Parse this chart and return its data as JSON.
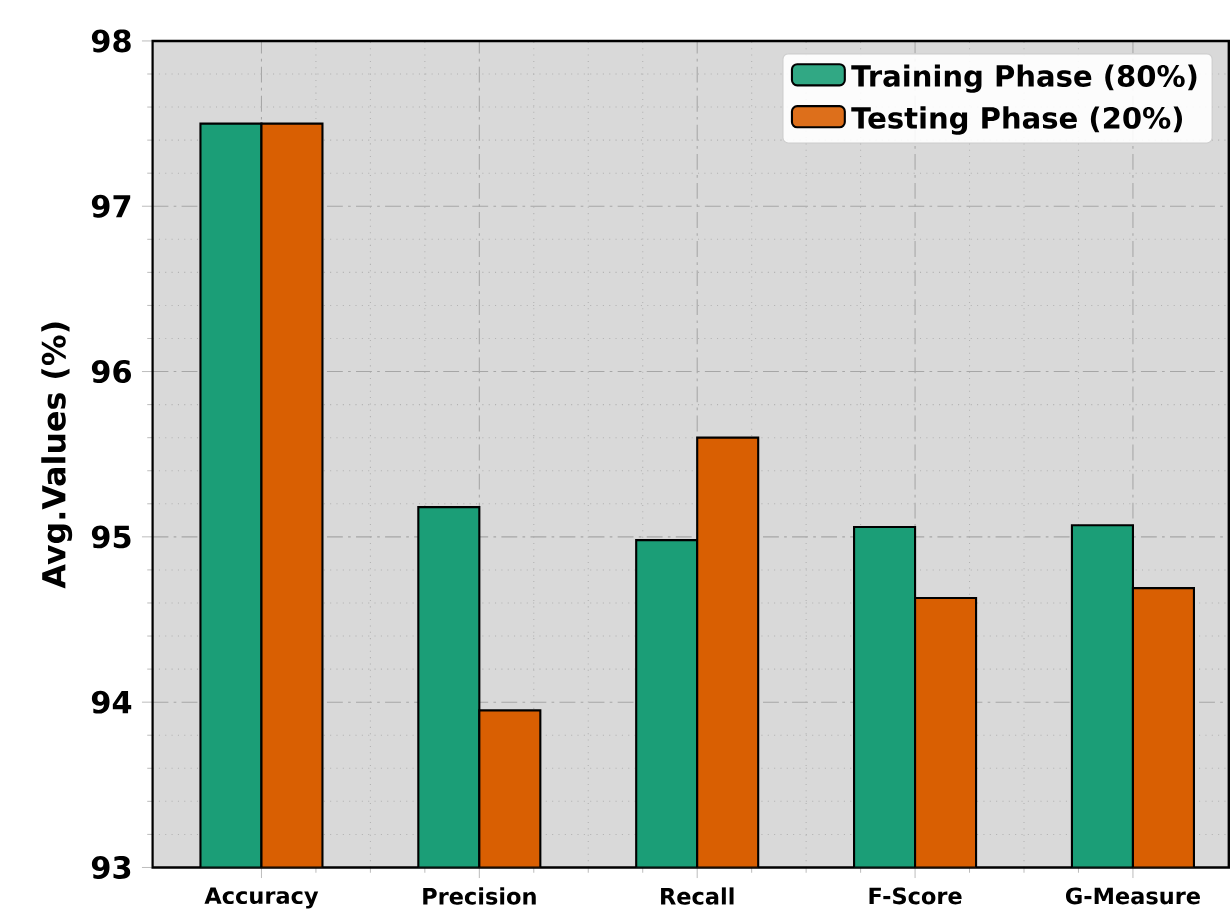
{
  "chart_data": {
    "type": "bar",
    "ylabel": "Avg.Values (%)",
    "categories": [
      "Accuracy",
      "Precision",
      "Recall",
      "F-Score",
      "G-Measure"
    ],
    "series": [
      {
        "name": "Training Phase (80%)",
        "color": "#1b9e77",
        "values": [
          97.5,
          95.18,
          94.98,
          95.06,
          95.07
        ]
      },
      {
        "name": "Testing Phase (20%)",
        "color": "#d95f02",
        "values": [
          97.5,
          93.95,
          95.6,
          94.63,
          94.69
        ]
      }
    ],
    "ylim": [
      93,
      98
    ],
    "yticks": [
      93,
      94,
      95,
      96,
      97,
      98
    ],
    "grid": true,
    "legend": "top right"
  }
}
